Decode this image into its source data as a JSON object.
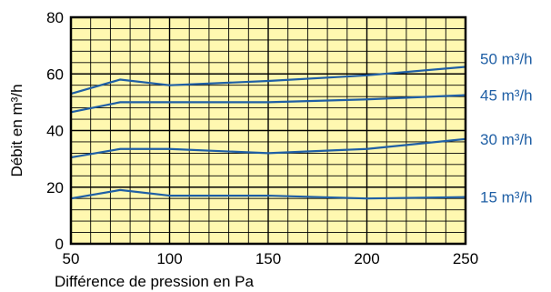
{
  "chart_data": {
    "type": "line",
    "title": "",
    "xlabel": "Différence de pression en Pa",
    "ylabel": "Débit en m³/h",
    "xlim": [
      50,
      250
    ],
    "ylim": [
      0,
      80
    ],
    "x_ticks": [
      50,
      100,
      150,
      200,
      250
    ],
    "y_ticks": [
      0,
      20,
      40,
      60,
      80
    ],
    "grid": true,
    "legend": "right-end labels",
    "colors": {
      "plot_background": "#fff8b0",
      "grid": "#000000",
      "series": "#1f5fa5"
    },
    "series": [
      {
        "name": "50 m³/h",
        "x": [
          50,
          75,
          100,
          150,
          200,
          250
        ],
        "values": [
          53,
          58,
          56,
          57.5,
          59.5,
          62.5
        ]
      },
      {
        "name": "45 m³/h",
        "x": [
          50,
          75,
          100,
          150,
          200,
          250
        ],
        "values": [
          46.5,
          50,
          50,
          50,
          51,
          52.5
        ]
      },
      {
        "name": "30 m³/h",
        "x": [
          50,
          75,
          100,
          150,
          200,
          250
        ],
        "values": [
          30.5,
          33.5,
          33.5,
          32,
          33.5,
          37
        ]
      },
      {
        "name": "15 m³/h",
        "x": [
          50,
          75,
          100,
          150,
          200,
          250
        ],
        "values": [
          16,
          19,
          17,
          17,
          16,
          16.5
        ]
      }
    ]
  }
}
